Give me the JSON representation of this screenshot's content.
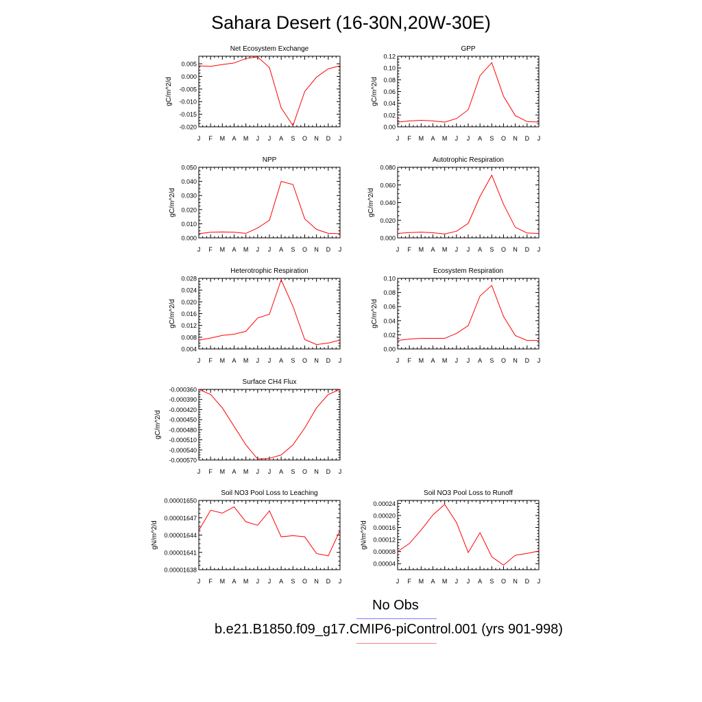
{
  "title": "Sahara Desert (16-30N,20W-30E)",
  "month_labels": [
    "J",
    "F",
    "M",
    "A",
    "M",
    "J",
    "J",
    "A",
    "S",
    "O",
    "N",
    "D",
    "J"
  ],
  "chart_data": [
    {
      "type": "line",
      "title": "Net Ecosystem Exchange",
      "ylabel": "gC/m^2/d",
      "ylim": [
        -0.02,
        0.008
      ],
      "yticks": [
        -0.02,
        -0.015,
        -0.01,
        -0.005,
        0.0,
        0.005
      ],
      "ytick_labels": [
        "-0.020",
        "-0.015",
        "-0.010",
        "-0.005",
        "0.000",
        "0.005"
      ],
      "series": [
        {
          "color": "#ff0000",
          "values": [
            0.0042,
            0.004,
            0.0047,
            0.0053,
            0.0071,
            0.0077,
            0.0035,
            -0.0125,
            -0.0195,
            -0.006,
            -0.0003,
            0.003,
            0.0042
          ]
        }
      ]
    },
    {
      "type": "line",
      "title": "GPP",
      "ylabel": "gC/m^2/d",
      "ylim": [
        0.0,
        0.12
      ],
      "yticks": [
        0.0,
        0.02,
        0.04,
        0.06,
        0.08,
        0.1,
        0.12
      ],
      "ytick_labels": [
        "0.00",
        "0.02",
        "0.04",
        "0.06",
        "0.08",
        "0.10",
        "0.12"
      ],
      "series": [
        {
          "color": "#ff0000",
          "values": [
            0.008,
            0.01,
            0.011,
            0.01,
            0.008,
            0.014,
            0.029,
            0.087,
            0.109,
            0.052,
            0.019,
            0.009,
            0.008
          ]
        }
      ]
    },
    {
      "type": "line",
      "title": "NPP",
      "ylabel": "gC/m^2/d",
      "ylim": [
        0.0,
        0.05
      ],
      "yticks": [
        0.0,
        0.01,
        0.02,
        0.03,
        0.04,
        0.05
      ],
      "ytick_labels": [
        "0.000",
        "0.010",
        "0.020",
        "0.030",
        "0.040",
        "0.050"
      ],
      "series": [
        {
          "color": "#ff0000",
          "values": [
            0.003,
            0.004,
            0.0042,
            0.004,
            0.0032,
            0.007,
            0.0125,
            0.04,
            0.0378,
            0.0135,
            0.006,
            0.0032,
            0.003
          ]
        }
      ]
    },
    {
      "type": "line",
      "title": "Autotrophic Respiration",
      "ylabel": "gC/m^2/d",
      "ylim": [
        0.0,
        0.08
      ],
      "yticks": [
        0.0,
        0.02,
        0.04,
        0.06,
        0.08
      ],
      "ytick_labels": [
        "0.000",
        "0.020",
        "0.040",
        "0.060",
        "0.080"
      ],
      "series": [
        {
          "color": "#ff0000",
          "values": [
            0.005,
            0.006,
            0.0065,
            0.0058,
            0.0045,
            0.0075,
            0.0165,
            0.047,
            0.071,
            0.038,
            0.012,
            0.0055,
            0.005
          ]
        }
      ]
    },
    {
      "type": "line",
      "title": "Heterotrophic Respiration",
      "ylabel": "gC/m^2/d",
      "ylim": [
        0.004,
        0.028
      ],
      "yticks": [
        0.004,
        0.008,
        0.012,
        0.016,
        0.02,
        0.024,
        0.028
      ],
      "ytick_labels": [
        "0.004",
        "0.008",
        "0.012",
        "0.016",
        "0.020",
        "0.024",
        "0.028"
      ],
      "series": [
        {
          "color": "#ff0000",
          "values": [
            0.007,
            0.0077,
            0.0086,
            0.009,
            0.01,
            0.0145,
            0.0158,
            0.0275,
            0.0185,
            0.0072,
            0.0055,
            0.006,
            0.007
          ]
        }
      ]
    },
    {
      "type": "line",
      "title": "Ecosystem Respiration",
      "ylabel": "gC/m^2/d",
      "ylim": [
        0.0,
        0.1
      ],
      "yticks": [
        0.0,
        0.02,
        0.04,
        0.06,
        0.08,
        0.1
      ],
      "ytick_labels": [
        "0.00",
        "0.02",
        "0.04",
        "0.06",
        "0.08",
        "0.10"
      ],
      "series": [
        {
          "color": "#ff0000",
          "values": [
            0.012,
            0.014,
            0.015,
            0.015,
            0.015,
            0.022,
            0.033,
            0.075,
            0.09,
            0.046,
            0.019,
            0.012,
            0.012
          ]
        }
      ]
    },
    {
      "type": "line",
      "title": "Surface CH4 Flux",
      "ylabel": "gC/m^2/d",
      "ylim": [
        -0.00057,
        -0.00036
      ],
      "yticks": [
        -0.00057,
        -0.00054,
        -0.00051,
        -0.00048,
        -0.00045,
        -0.00042,
        -0.00039,
        -0.00036
      ],
      "ytick_labels": [
        "-0.000570",
        "-0.000540",
        "-0.000510",
        "-0.000480",
        "-0.000450",
        "-0.000420",
        "-0.000390",
        "-0.000360"
      ],
      "series": [
        {
          "color": "#ff0000",
          "values": [
            -0.00036,
            -0.000375,
            -0.000415,
            -0.00047,
            -0.000525,
            -0.000567,
            -0.000565,
            -0.000555,
            -0.000525,
            -0.000475,
            -0.000415,
            -0.000375,
            -0.00036
          ]
        }
      ]
    },
    {
      "type": "line",
      "title": "Soil NO3 Pool Loss to Leaching",
      "ylabel": "gN/m^2/d",
      "ylim": [
        1.638e-05,
        1.65e-05
      ],
      "yticks": [
        1.638e-05,
        1.641e-05,
        1.644e-05,
        1.647e-05,
        1.65e-05
      ],
      "ytick_labels": [
        "0.00001638",
        "0.00001641",
        "0.00001644",
        "0.00001647",
        "0.00001650"
      ],
      "series": [
        {
          "color": "#ff0000",
          "values": [
            1.6448e-05,
            1.6483e-05,
            1.6478e-05,
            1.6489e-05,
            1.6463e-05,
            1.6457e-05,
            1.6482e-05,
            1.6437e-05,
            1.6439e-05,
            1.6437e-05,
            1.6408e-05,
            1.6404e-05,
            1.6448e-05
          ]
        }
      ]
    },
    {
      "type": "line",
      "title": "Soil NO3 Pool Loss to Runoff",
      "ylabel": "gN/m^2/d",
      "ylim": [
        2e-05,
        0.00025
      ],
      "yticks": [
        4e-05,
        8e-05,
        0.00012,
        0.00016,
        0.0002,
        0.00024
      ],
      "ytick_labels": [
        "0.00004",
        "0.00008",
        "0.00012",
        "0.00016",
        "0.00020",
        "0.00024"
      ],
      "series": [
        {
          "color": "#ff0000",
          "values": [
            8e-05,
            0.000107,
            0.000152,
            0.000202,
            0.000237,
            0.000177,
            7.7e-05,
            0.000143,
            6.3e-05,
            3.5e-05,
            6.8e-05,
            7.4e-05,
            8.2e-05
          ]
        }
      ]
    }
  ],
  "legend": [
    {
      "label": "No Obs",
      "color": "#7b7bff"
    },
    {
      "label": "b.e21.B1850.f09_g17.CMIP6-piControl.001 (yrs 901-998)",
      "color": "#ff7b7b"
    }
  ]
}
